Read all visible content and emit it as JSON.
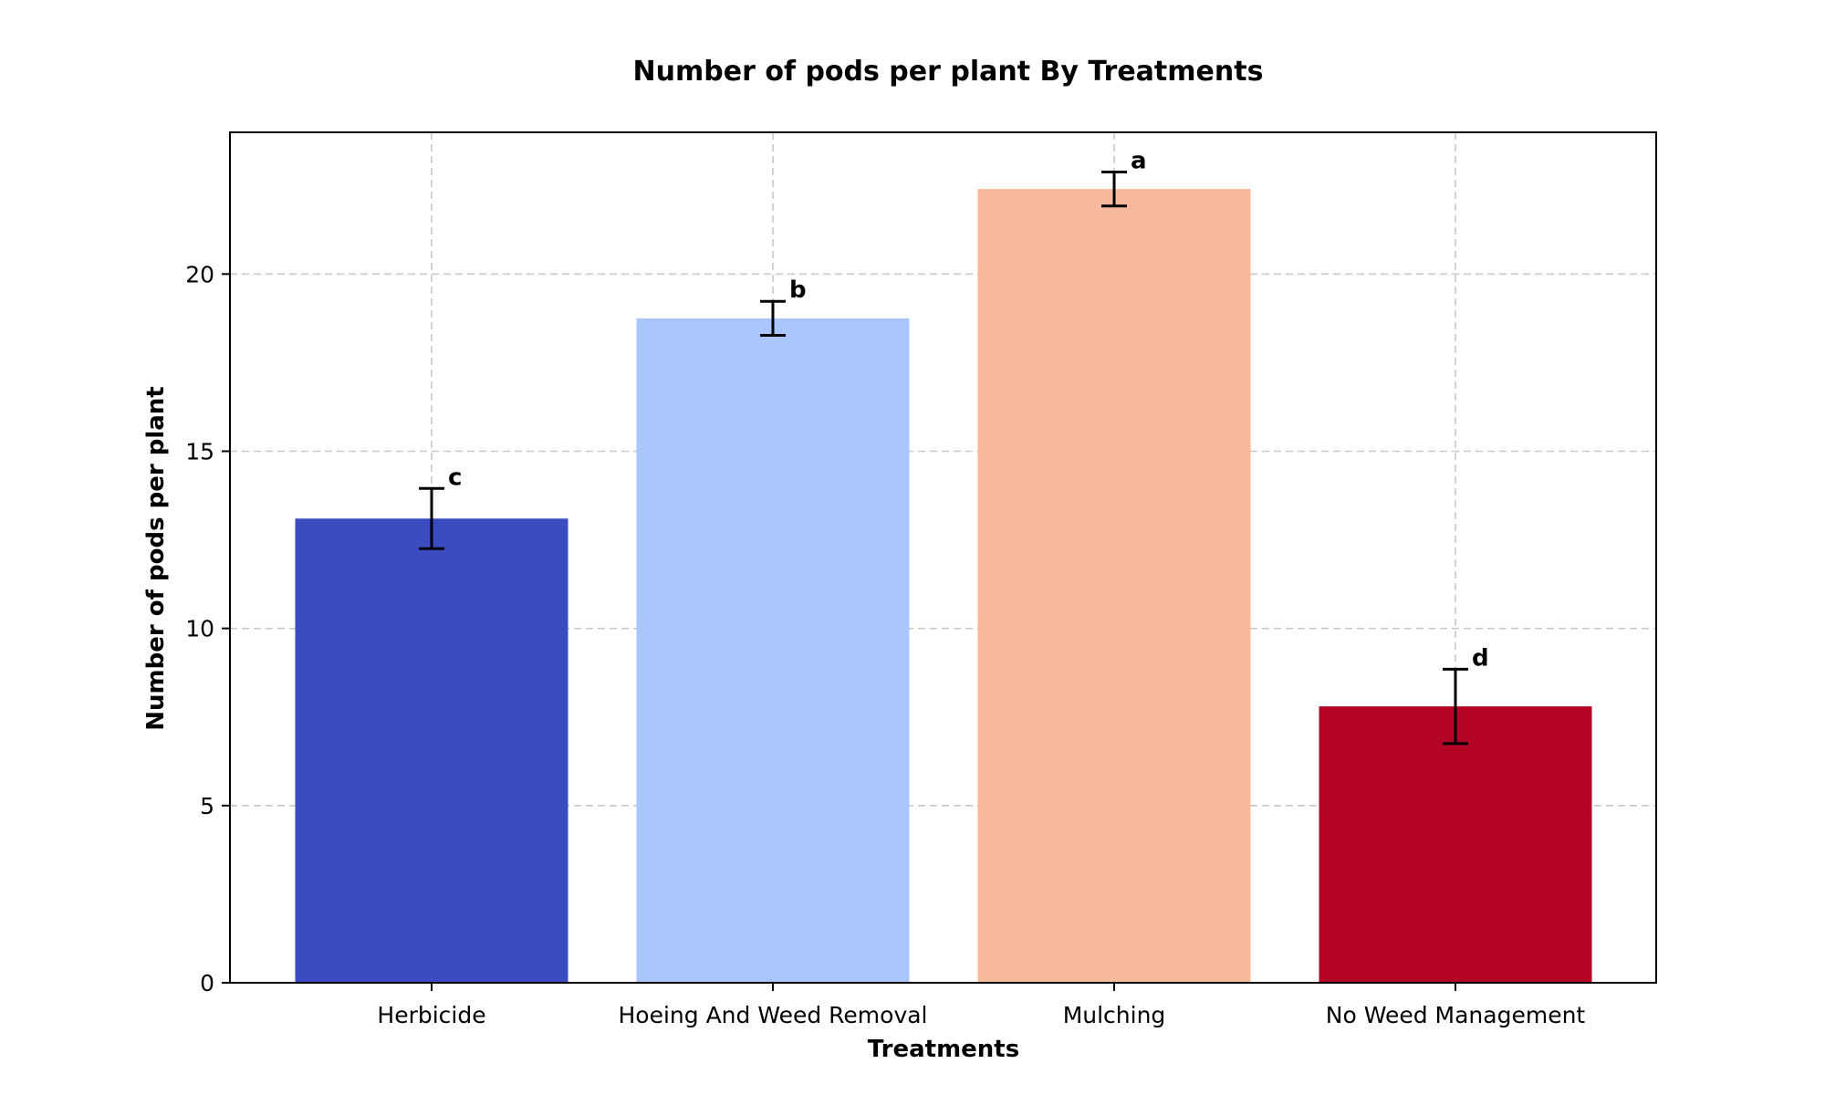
{
  "chart_data": {
    "type": "bar",
    "title": "Number of pods per plant By Treatments",
    "xlabel": "Treatments",
    "ylabel": "Number of pods per plant",
    "categories": [
      "Herbicide",
      "Hoeing And Weed Removal",
      "Mulching",
      "No Weed Management"
    ],
    "values": [
      13.1,
      18.75,
      22.4,
      7.8
    ],
    "errors": [
      0.85,
      0.48,
      0.48,
      1.05
    ],
    "significance_letters": [
      "c",
      "b",
      "a",
      "d"
    ],
    "colors": [
      "#3b4cc0",
      "#aac7fd",
      "#f7b89c",
      "#b40426"
    ],
    "ylim": [
      0,
      24
    ],
    "yticks": [
      0,
      5,
      10,
      15,
      20
    ],
    "grid": true,
    "legend": "none"
  }
}
